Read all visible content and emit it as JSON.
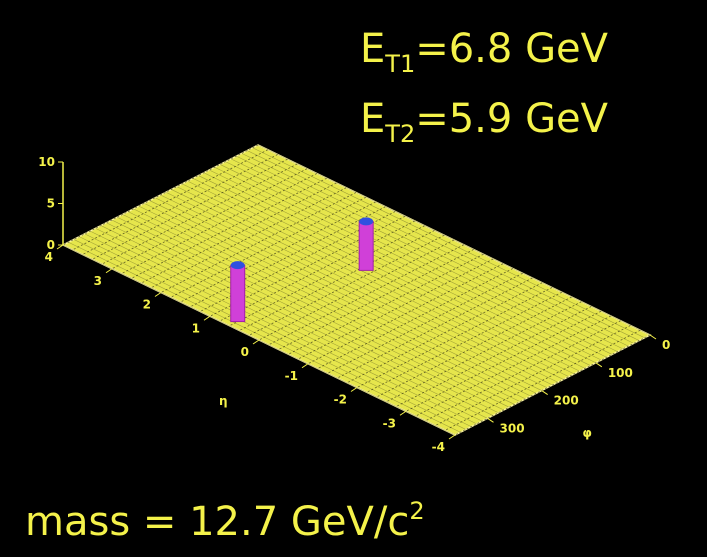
{
  "chart_data": {
    "type": "lego3d",
    "annotations": [
      {
        "main": "E",
        "sub": "T1",
        "rest": "=6.8 GeV"
      },
      {
        "main": "E",
        "sub": "T2",
        "rest": "=5.9 GeV"
      },
      {
        "main": "mass = 12.7 GeV/c",
        "sup": "2"
      }
    ],
    "eta_label": "η",
    "phi_label": "φ",
    "etalim": [
      -4,
      4
    ],
    "etaticks": [
      4,
      3,
      2,
      1,
      0,
      -1,
      -2,
      -3,
      -4
    ],
    "philim": [
      0,
      360
    ],
    "phiticks": [
      0,
      100,
      200,
      300
    ],
    "zlim": [
      0,
      10
    ],
    "zticks": [
      0,
      5,
      10
    ],
    "towers": {
      "eta": [
        0.6,
        0.3
      ],
      "phi": [
        345,
        135
      ],
      "et": [
        6.8,
        5.9
      ]
    },
    "plane_color": "#e6e64c",
    "tower_color": "#d040d8",
    "tower_top_color": "#3050e0"
  }
}
